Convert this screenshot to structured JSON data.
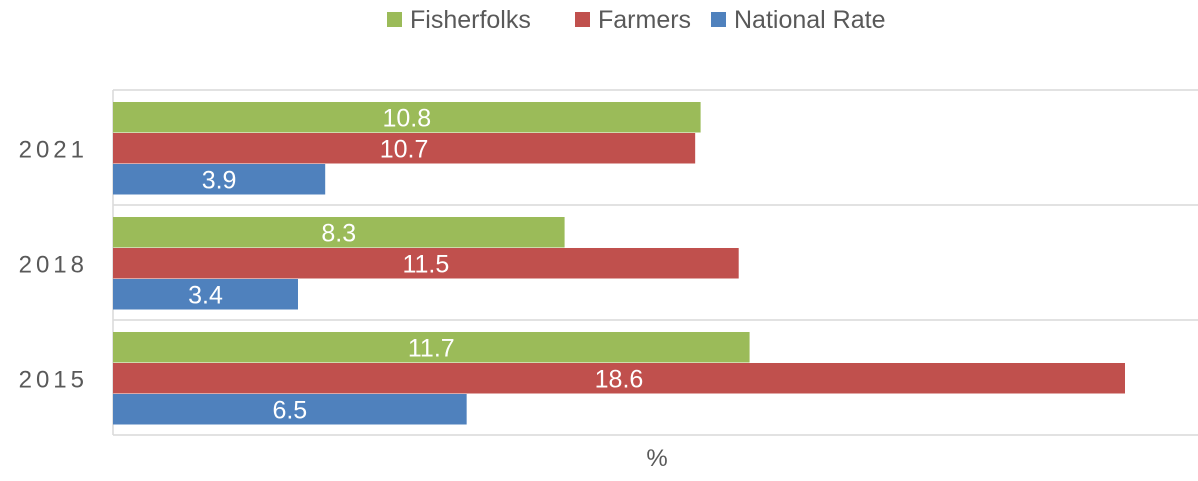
{
  "chart_data": {
    "type": "bar",
    "orientation": "horizontal",
    "categories": [
      "2021",
      "2018",
      "2015"
    ],
    "series": [
      {
        "name": "Fisherfolks",
        "color": "#9BBB59",
        "values": [
          10.8,
          8.3,
          11.7
        ]
      },
      {
        "name": "Farmers",
        "color": "#C0504D",
        "values": [
          10.7,
          11.5,
          18.6
        ]
      },
      {
        "name": "National Rate",
        "color": "#4F81BD",
        "values": [
          3.9,
          3.4,
          6.5
        ]
      }
    ],
    "title": "",
    "xlabel": "%",
    "ylabel": "",
    "xlim": [
      0,
      20
    ],
    "legend": "top-center",
    "data_labels": true,
    "grid": false
  }
}
